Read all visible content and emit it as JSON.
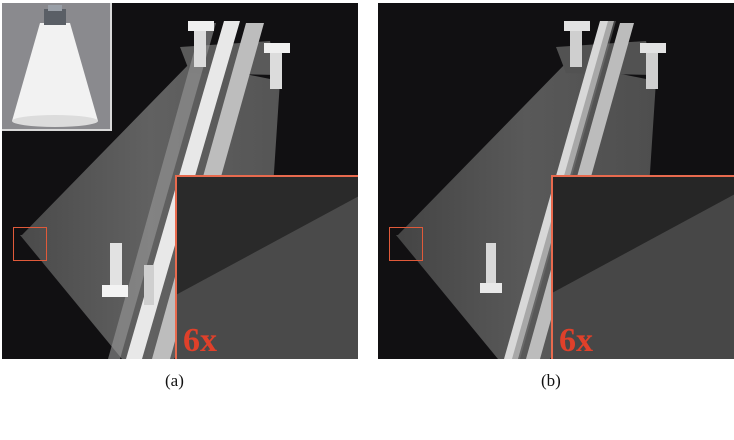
{
  "panels": [
    {
      "caption": "(a)",
      "zoom_label": "6x"
    },
    {
      "caption": "(b)",
      "zoom_label": "6x"
    }
  ],
  "colors": {
    "background": "#111012",
    "highlight": "#e05a3a",
    "zoom_label": "#e0402a"
  }
}
